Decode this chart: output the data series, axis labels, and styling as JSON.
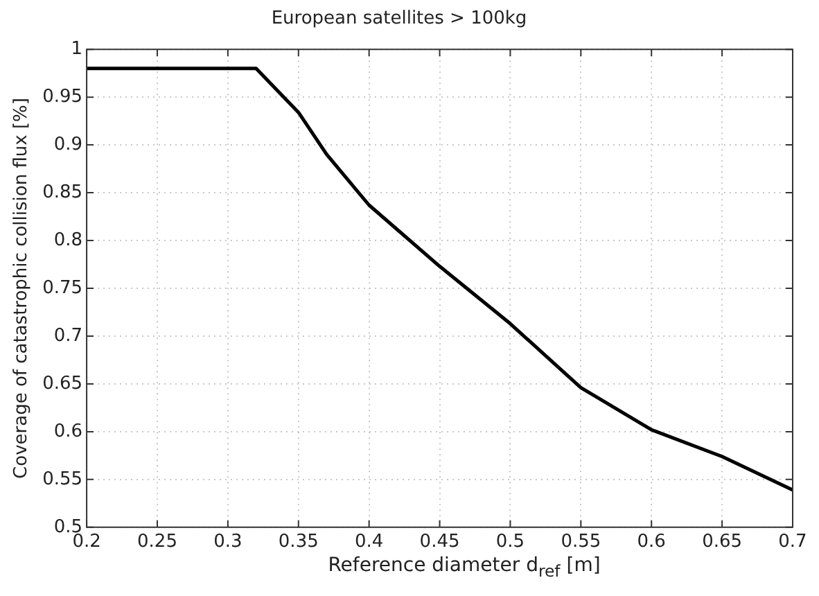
{
  "chart_data": {
    "type": "line",
    "title": "European satellites > 100kg",
    "xlabel": "Reference diameter d$_{ref}$ [m]",
    "ylabel": "Coverage of catastrophic collision flux [%]",
    "x": [
      0.2,
      0.32,
      0.35,
      0.37,
      0.4,
      0.45,
      0.5,
      0.55,
      0.6,
      0.65,
      0.7
    ],
    "series": [
      {
        "color": "#000000",
        "values": [
          0.98,
          0.98,
          0.934,
          0.89,
          0.837,
          0.773,
          0.713,
          0.646,
          0.602,
          0.574,
          0.539
        ]
      }
    ],
    "xlim": [
      0.2,
      0.7
    ],
    "xticks": [
      0.2,
      0.25,
      0.3,
      0.35,
      0.4,
      0.45,
      0.5,
      0.55,
      0.6,
      0.65,
      0.7
    ],
    "ylim": [
      0.5,
      1
    ],
    "yticks": [
      0.5,
      0.55,
      0.6,
      0.65,
      0.7,
      0.75,
      0.8,
      0.85,
      0.9,
      0.95,
      1
    ],
    "grid": true,
    "legend": false,
    "marker": "none",
    "line_style": "solid"
  }
}
